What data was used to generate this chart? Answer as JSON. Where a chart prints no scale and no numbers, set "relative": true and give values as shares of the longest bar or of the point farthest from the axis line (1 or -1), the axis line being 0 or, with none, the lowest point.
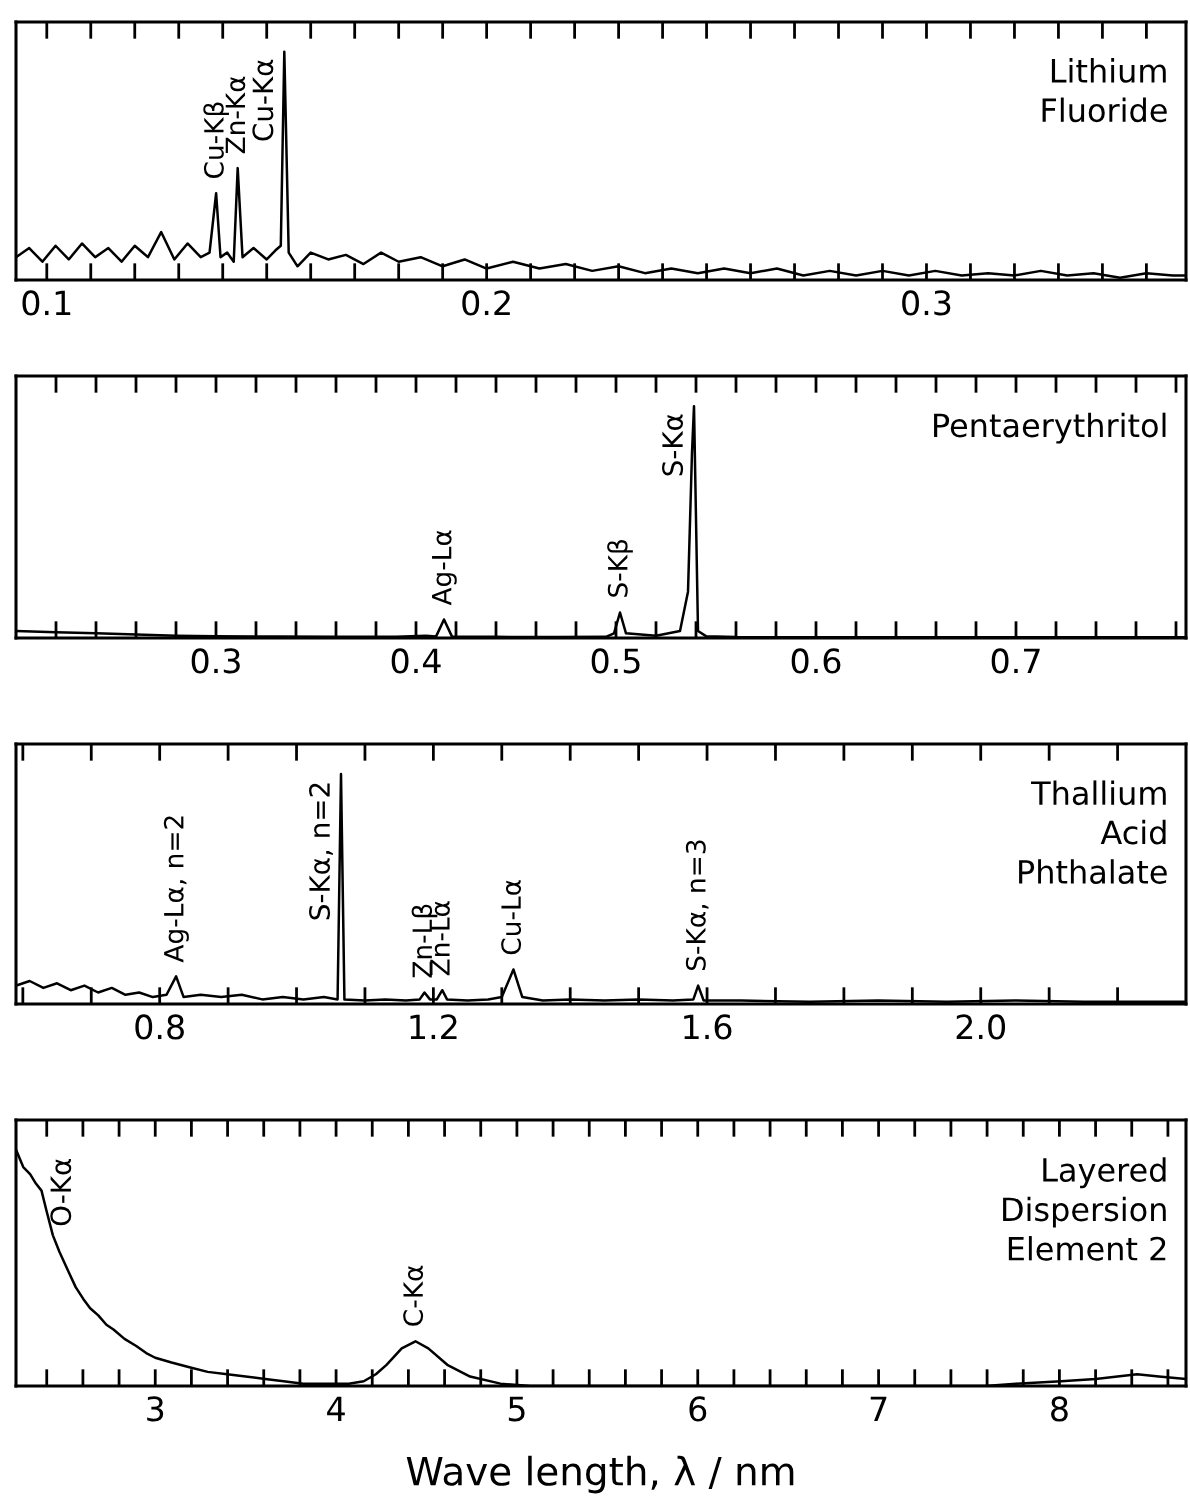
{
  "chart_data": [
    {
      "type": "line",
      "relative": true,
      "tick_labels": "x",
      "x": [
        0.093,
        0.096,
        0.099,
        0.102,
        0.105,
        0.108,
        0.111,
        0.114,
        0.117,
        0.12,
        0.123,
        0.126,
        0.129,
        0.132,
        0.135,
        0.137,
        0.1385,
        0.1395,
        0.141,
        0.1425,
        0.1434,
        0.1445,
        0.147,
        0.15,
        0.152,
        0.1532,
        0.154,
        0.155,
        0.157,
        0.16,
        0.164,
        0.168,
        0.172,
        0.176,
        0.18,
        0.185,
        0.19,
        0.195,
        0.2,
        0.206,
        0.212,
        0.218,
        0.224,
        0.23,
        0.236,
        0.242,
        0.248,
        0.254,
        0.26,
        0.266,
        0.272,
        0.278,
        0.284,
        0.29,
        0.296,
        0.302,
        0.308,
        0.314,
        0.32,
        0.326,
        0.332,
        0.338,
        0.344,
        0.35,
        0.356,
        0.359
      ],
      "series": [
        {
          "color": "#000000",
          "values": [
            0.1,
            0.14,
            0.08,
            0.15,
            0.09,
            0.16,
            0.1,
            0.14,
            0.08,
            0.15,
            0.1,
            0.21,
            0.09,
            0.16,
            0.1,
            0.12,
            0.38,
            0.1,
            0.12,
            0.08,
            0.49,
            0.1,
            0.14,
            0.09,
            0.13,
            0.15,
            1.0,
            0.12,
            0.06,
            0.12,
            0.09,
            0.11,
            0.07,
            0.12,
            0.08,
            0.1,
            0.06,
            0.09,
            0.05,
            0.08,
            0.05,
            0.07,
            0.04,
            0.06,
            0.03,
            0.05,
            0.03,
            0.05,
            0.03,
            0.05,
            0.02,
            0.04,
            0.02,
            0.04,
            0.02,
            0.04,
            0.02,
            0.03,
            0.02,
            0.04,
            0.02,
            0.03,
            0.01,
            0.03,
            0.02,
            0.02
          ]
        }
      ],
      "xlim": [
        0.093,
        0.359
      ],
      "xticks": [
        {
          "value": 0.1,
          "label": "0.1"
        },
        {
          "value": 0.11,
          "label": null
        },
        {
          "value": 0.12,
          "label": null
        },
        {
          "value": 0.13,
          "label": null
        },
        {
          "value": 0.14,
          "label": null
        },
        {
          "value": 0.15,
          "label": null
        },
        {
          "value": 0.16,
          "label": null
        },
        {
          "value": 0.17,
          "label": null
        },
        {
          "value": 0.18,
          "label": null
        },
        {
          "value": 0.19,
          "label": null
        },
        {
          "value": 0.2,
          "label": "0.2"
        },
        {
          "value": 0.21,
          "label": null
        },
        {
          "value": 0.22,
          "label": null
        },
        {
          "value": 0.23,
          "label": null
        },
        {
          "value": 0.24,
          "label": null
        },
        {
          "value": 0.25,
          "label": null
        },
        {
          "value": 0.26,
          "label": null
        },
        {
          "value": 0.27,
          "label": null
        },
        {
          "value": 0.28,
          "label": null
        },
        {
          "value": 0.29,
          "label": null
        },
        {
          "value": 0.3,
          "label": "0.3"
        },
        {
          "value": 0.31,
          "label": null
        },
        {
          "value": 0.32,
          "label": null
        },
        {
          "value": 0.33,
          "label": null
        },
        {
          "value": 0.34,
          "label": null
        },
        {
          "value": 0.35,
          "label": null
        }
      ],
      "annotations": [
        "Lithium\nFluoride",
        {
          "text": "Cu-Kβ",
          "x": 0.1385,
          "y": 0.38
        },
        {
          "text": "Zn-Kα",
          "x": 0.1434,
          "y": 0.49
        },
        {
          "text": "Cu-Kα",
          "x": 0.154,
          "y": 1.0
        }
      ]
    },
    {
      "type": "line",
      "relative": true,
      "tick_labels": "x",
      "x": [
        0.2,
        0.22,
        0.24,
        0.26,
        0.28,
        0.3,
        0.33,
        0.36,
        0.39,
        0.405,
        0.41,
        0.414,
        0.418,
        0.44,
        0.47,
        0.495,
        0.499,
        0.502,
        0.505,
        0.52,
        0.532,
        0.536,
        0.538,
        0.539,
        0.541,
        0.545,
        0.56,
        0.6,
        0.65,
        0.7,
        0.75,
        0.785
      ],
      "series": [
        {
          "color": "#000000",
          "values": [
            0.03,
            0.025,
            0.02,
            0.015,
            0.01,
            0.008,
            0.006,
            0.005,
            0.005,
            0.01,
            0.006,
            0.08,
            0.006,
            0.005,
            0.004,
            0.005,
            0.02,
            0.11,
            0.02,
            0.01,
            0.03,
            0.2,
            0.8,
            1.0,
            0.03,
            0.008,
            0.004,
            0.003,
            0.003,
            0.003,
            0.003,
            0.003
          ]
        }
      ],
      "xlim": [
        0.2,
        0.785
      ],
      "xticks": [
        {
          "value": 0.22,
          "label": null
        },
        {
          "value": 0.24,
          "label": null
        },
        {
          "value": 0.26,
          "label": null
        },
        {
          "value": 0.28,
          "label": null
        },
        {
          "value": 0.3,
          "label": "0.3"
        },
        {
          "value": 0.32,
          "label": null
        },
        {
          "value": 0.34,
          "label": null
        },
        {
          "value": 0.36,
          "label": null
        },
        {
          "value": 0.38,
          "label": null
        },
        {
          "value": 0.4,
          "label": "0.4"
        },
        {
          "value": 0.42,
          "label": null
        },
        {
          "value": 0.44,
          "label": null
        },
        {
          "value": 0.46,
          "label": null
        },
        {
          "value": 0.48,
          "label": null
        },
        {
          "value": 0.5,
          "label": "0.5"
        },
        {
          "value": 0.52,
          "label": null
        },
        {
          "value": 0.54,
          "label": null
        },
        {
          "value": 0.56,
          "label": null
        },
        {
          "value": 0.58,
          "label": null
        },
        {
          "value": 0.6,
          "label": "0.6"
        },
        {
          "value": 0.62,
          "label": null
        },
        {
          "value": 0.64,
          "label": null
        },
        {
          "value": 0.66,
          "label": null
        },
        {
          "value": 0.68,
          "label": null
        },
        {
          "value": 0.7,
          "label": "0.7"
        },
        {
          "value": 0.72,
          "label": null
        },
        {
          "value": 0.74,
          "label": null
        },
        {
          "value": 0.76,
          "label": null
        },
        {
          "value": 0.78,
          "label": null
        }
      ],
      "annotations": [
        "Pentaerythritol",
        {
          "text": "Ag-Lα",
          "x": 0.414,
          "y": 0.08
        },
        {
          "text": "S-Kβ",
          "x": 0.502,
          "y": 0.11
        },
        {
          "text": "S-Kα",
          "x": 0.539,
          "y": 1.0
        }
      ]
    },
    {
      "type": "line",
      "relative": true,
      "tick_labels": "x",
      "x": [
        0.59,
        0.61,
        0.63,
        0.65,
        0.67,
        0.69,
        0.71,
        0.73,
        0.75,
        0.77,
        0.79,
        0.81,
        0.824,
        0.835,
        0.86,
        0.89,
        0.92,
        0.95,
        0.98,
        1.01,
        1.04,
        1.06,
        1.065,
        1.07,
        1.1,
        1.13,
        1.16,
        1.18,
        1.187,
        1.195,
        1.205,
        1.213,
        1.22,
        1.25,
        1.28,
        1.3,
        1.317,
        1.33,
        1.36,
        1.4,
        1.45,
        1.5,
        1.55,
        1.58,
        1.587,
        1.595,
        1.65,
        1.75,
        1.85,
        1.95,
        2.05,
        2.15,
        2.3
      ],
      "series": [
        {
          "color": "#000000",
          "values": [
            0.08,
            0.1,
            0.07,
            0.09,
            0.06,
            0.08,
            0.05,
            0.07,
            0.04,
            0.05,
            0.03,
            0.04,
            0.12,
            0.03,
            0.04,
            0.03,
            0.04,
            0.02,
            0.03,
            0.02,
            0.03,
            0.02,
            1.0,
            0.02,
            0.015,
            0.02,
            0.015,
            0.02,
            0.05,
            0.02,
            0.02,
            0.06,
            0.02,
            0.015,
            0.02,
            0.03,
            0.15,
            0.03,
            0.015,
            0.02,
            0.015,
            0.02,
            0.015,
            0.02,
            0.08,
            0.015,
            0.015,
            0.01,
            0.015,
            0.01,
            0.015,
            0.01,
            0.01
          ]
        }
      ],
      "xlim": [
        0.59,
        2.3
      ],
      "xticks": [
        {
          "value": 0.6,
          "label": null
        },
        {
          "value": 0.7,
          "label": null
        },
        {
          "value": 0.8,
          "label": "0.8"
        },
        {
          "value": 0.9,
          "label": null
        },
        {
          "value": 1.0,
          "label": null
        },
        {
          "value": 1.1,
          "label": null
        },
        {
          "value": 1.2,
          "label": "1.2"
        },
        {
          "value": 1.3,
          "label": null
        },
        {
          "value": 1.4,
          "label": null
        },
        {
          "value": 1.5,
          "label": null
        },
        {
          "value": 1.6,
          "label": "1.6"
        },
        {
          "value": 1.7,
          "label": null
        },
        {
          "value": 1.8,
          "label": null
        },
        {
          "value": 1.9,
          "label": null
        },
        {
          "value": 2.0,
          "label": "2.0"
        },
        {
          "value": 2.1,
          "label": null
        },
        {
          "value": 2.2,
          "label": null
        }
      ],
      "annotations": [
        "Thallium\nAcid\nPhthalate",
        {
          "text": "Ag-Lα, n=2",
          "x": 0.824,
          "y": 0.12
        },
        {
          "text": "S-Kα, n=2",
          "x": 1.065,
          "y": 1.0
        },
        {
          "text": "Zn-Lβ",
          "x": 1.187,
          "y": 0.05
        },
        {
          "text": "Zn-Lα",
          "x": 1.213,
          "y": 0.06
        },
        {
          "text": "Cu-Lα",
          "x": 1.317,
          "y": 0.15
        },
        {
          "text": "S-Kα, n=3",
          "x": 1.587,
          "y": 0.08
        }
      ]
    },
    {
      "type": "line",
      "relative": true,
      "tick_labels": "x",
      "xlabel": "Wave length, λ / nm",
      "x": [
        2.232,
        2.27,
        2.308,
        2.34,
        2.371,
        2.4,
        2.434,
        2.47,
        2.518,
        2.56,
        2.602,
        2.64,
        2.685,
        2.73,
        2.769,
        2.83,
        2.895,
        2.95,
        3.0,
        3.09,
        3.189,
        3.29,
        3.398,
        3.5,
        3.608,
        3.71,
        3.818,
        3.9,
        3.986,
        4.07,
        4.153,
        4.22,
        4.279,
        4.363,
        4.439,
        4.51,
        4.615,
        4.741,
        4.909,
        5.076,
        5.5,
        6.0,
        6.33,
        6.8,
        7.3,
        7.59,
        7.76,
        8.01,
        8.2,
        8.43,
        8.55,
        8.7
      ],
      "series": [
        {
          "color": "#000000",
          "values": [
            1.0,
            0.93,
            0.9,
            0.86,
            0.83,
            0.74,
            0.64,
            0.57,
            0.49,
            0.42,
            0.37,
            0.33,
            0.3,
            0.26,
            0.24,
            0.2,
            0.17,
            0.14,
            0.12,
            0.1,
            0.08,
            0.06,
            0.05,
            0.04,
            0.03,
            0.02,
            0.01,
            0.01,
            0.01,
            0.01,
            0.02,
            0.05,
            0.09,
            0.16,
            0.19,
            0.16,
            0.09,
            0.04,
            0.01,
            0.0,
            0.0,
            0.0,
            0.0,
            0.0,
            0.0,
            0.0,
            0.01,
            0.02,
            0.03,
            0.05,
            0.04,
            0.03
          ]
        }
      ],
      "xlim": [
        2.23,
        8.7
      ],
      "xticks": [
        {
          "value": 2.4,
          "label": null
        },
        {
          "value": 2.6,
          "label": null
        },
        {
          "value": 2.8,
          "label": null
        },
        {
          "value": 3,
          "label": "3"
        },
        {
          "value": 3.2,
          "label": null
        },
        {
          "value": 3.4,
          "label": null
        },
        {
          "value": 3.6,
          "label": null
        },
        {
          "value": 3.8,
          "label": null
        },
        {
          "value": 4,
          "label": "4"
        },
        {
          "value": 4.2,
          "label": null
        },
        {
          "value": 4.4,
          "label": null
        },
        {
          "value": 4.6,
          "label": null
        },
        {
          "value": 4.8,
          "label": null
        },
        {
          "value": 5,
          "label": "5"
        },
        {
          "value": 5.2,
          "label": null
        },
        {
          "value": 5.4,
          "label": null
        },
        {
          "value": 5.6,
          "label": null
        },
        {
          "value": 5.8,
          "label": null
        },
        {
          "value": 6,
          "label": "6"
        },
        {
          "value": 6.2,
          "label": null
        },
        {
          "value": 6.4,
          "label": null
        },
        {
          "value": 6.6,
          "label": null
        },
        {
          "value": 6.8,
          "label": null
        },
        {
          "value": 7,
          "label": "7"
        },
        {
          "value": 7.2,
          "label": null
        },
        {
          "value": 7.4,
          "label": null
        },
        {
          "value": 7.6,
          "label": null
        },
        {
          "value": 7.8,
          "label": null
        },
        {
          "value": 8,
          "label": "8"
        },
        {
          "value": 8.2,
          "label": null
        },
        {
          "value": 8.4,
          "label": null
        },
        {
          "value": 8.6,
          "label": null
        }
      ],
      "annotations": [
        "Layered\nDispersion\nElement 2",
        {
          "text": "O-Kα",
          "x": 2.34,
          "y": 0.86
        },
        {
          "text": "C-Kα",
          "x": 4.439,
          "y": 0.19
        }
      ]
    }
  ]
}
